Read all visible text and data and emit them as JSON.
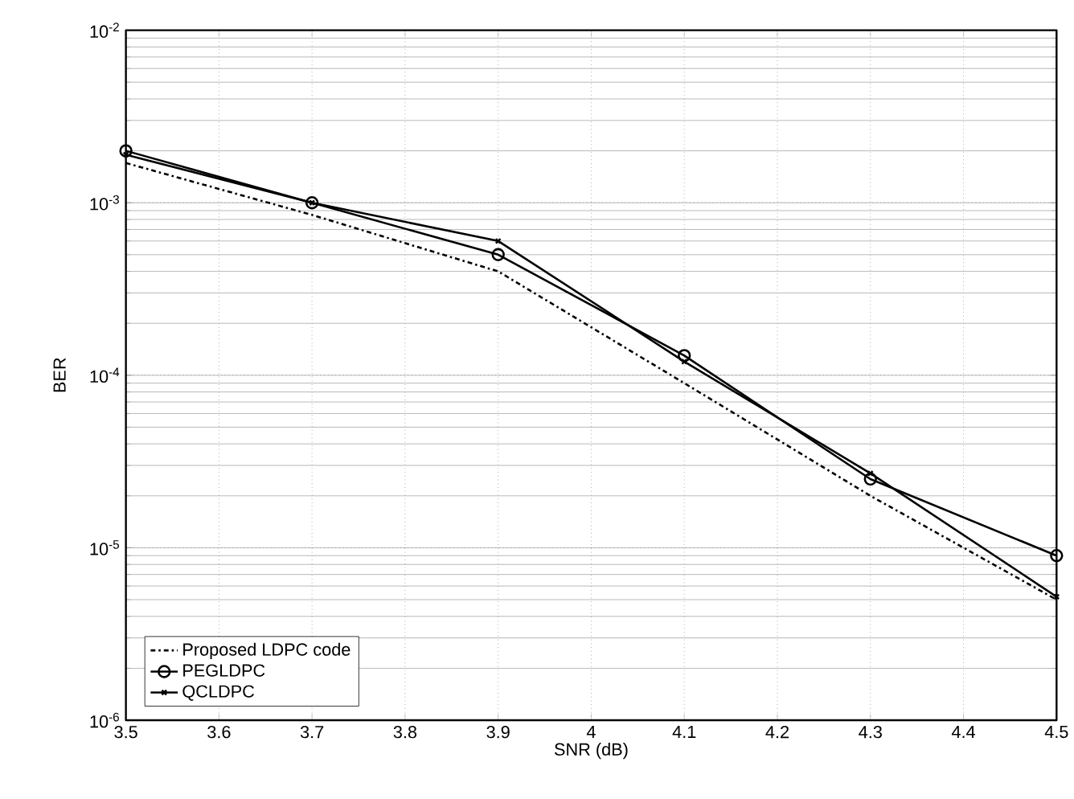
{
  "chart_data": {
    "type": "line",
    "xlabel": "SNR (dB)",
    "ylabel": "BER",
    "x": [
      3.5,
      3.7,
      3.9,
      4.1,
      4.3,
      4.5
    ],
    "series": [
      {
        "name": "Proposed LDPC code",
        "color": "#000000",
        "marker": "none",
        "line_style": "dashdot",
        "values": [
          0.0017,
          0.00085,
          0.0004,
          9e-05,
          2e-05,
          5e-06
        ]
      },
      {
        "name": "PEGLDPC",
        "color": "#000000",
        "marker": "circle",
        "line_style": "solid",
        "values": [
          0.002,
          0.001,
          0.0005,
          0.00013,
          2.5e-05,
          9e-06
        ]
      },
      {
        "name": "QCLDPC",
        "color": "#000000",
        "marker": "cross",
        "line_style": "solid",
        "values": [
          0.0019,
          0.001,
          0.0006,
          0.00012,
          2.7e-05,
          5.2e-06
        ]
      }
    ],
    "log": "y",
    "xlim": [
      3.5,
      4.5
    ],
    "ylim": [
      1e-06,
      0.01
    ],
    "xticks": [
      3.5,
      3.6,
      3.7,
      3.8,
      3.9,
      4,
      4.1,
      4.2,
      4.3,
      4.4,
      4.5
    ],
    "yticks": [
      {
        "value": 1e-06,
        "label": "10$^{-6}$"
      },
      {
        "value": 1e-05,
        "label": "10$^{-5}$"
      },
      {
        "value": 0.0001,
        "label": "10$^{-4}$"
      },
      {
        "value": 0.001,
        "label": "10$^{-3}$"
      },
      {
        "value": 0.01,
        "label": "10$^{-2}$"
      }
    ],
    "grid": true,
    "legend": "bottom left"
  }
}
